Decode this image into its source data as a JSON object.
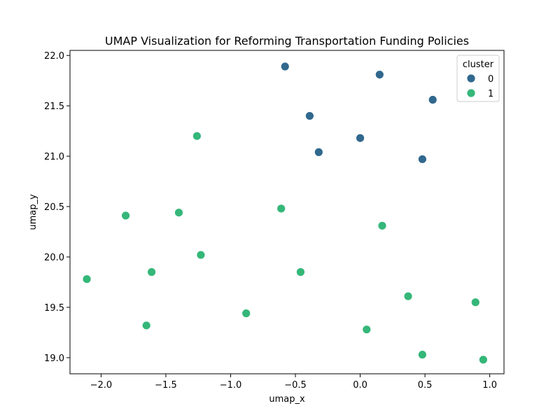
{
  "chart_data": {
    "type": "scatter",
    "title": "UMAP Visualization for Reforming Transportation Funding Policies",
    "xlabel": "umap_x",
    "ylabel": "umap_y",
    "xlim": [
      -2.24,
      1.11
    ],
    "ylim": [
      18.84,
      22.05
    ],
    "xticks": [
      -2.0,
      -1.5,
      -1.0,
      -0.5,
      0.0,
      0.5,
      1.0
    ],
    "xtick_labels": [
      "−2.0",
      "−1.5",
      "−1.0",
      "−0.5",
      "0.0",
      "0.5",
      "1.0"
    ],
    "yticks": [
      19.0,
      19.5,
      20.0,
      20.5,
      21.0,
      21.5,
      22.0
    ],
    "ytick_labels": [
      "19.0",
      "19.5",
      "20.0",
      "20.5",
      "21.0",
      "21.5",
      "22.0"
    ],
    "grid": false,
    "legend": {
      "title": "cluster",
      "placement": "top-right",
      "entries": [
        "0",
        "1"
      ]
    },
    "series": [
      {
        "name": "0",
        "color": "#31688e",
        "points": [
          {
            "x": -0.58,
            "y": 21.89
          },
          {
            "x": 0.15,
            "y": 21.81
          },
          {
            "x": 0.56,
            "y": 21.56
          },
          {
            "x": -0.39,
            "y": 21.4
          },
          {
            "x": 0.0,
            "y": 21.18
          },
          {
            "x": -0.32,
            "y": 21.04
          },
          {
            "x": 0.48,
            "y": 20.97
          }
        ]
      },
      {
        "name": "1",
        "color": "#35b779",
        "points": [
          {
            "x": -1.26,
            "y": 21.2
          },
          {
            "x": -1.81,
            "y": 20.41
          },
          {
            "x": -1.4,
            "y": 20.44
          },
          {
            "x": -0.61,
            "y": 20.48
          },
          {
            "x": 0.17,
            "y": 20.31
          },
          {
            "x": -1.23,
            "y": 20.02
          },
          {
            "x": -1.61,
            "y": 19.85
          },
          {
            "x": -0.46,
            "y": 19.85
          },
          {
            "x": -2.11,
            "y": 19.78
          },
          {
            "x": 0.37,
            "y": 19.61
          },
          {
            "x": 0.89,
            "y": 19.55
          },
          {
            "x": -0.88,
            "y": 19.44
          },
          {
            "x": -1.65,
            "y": 19.32
          },
          {
            "x": 0.05,
            "y": 19.28
          },
          {
            "x": 0.48,
            "y": 19.03
          },
          {
            "x": 0.95,
            "y": 18.98
          }
        ]
      }
    ]
  }
}
